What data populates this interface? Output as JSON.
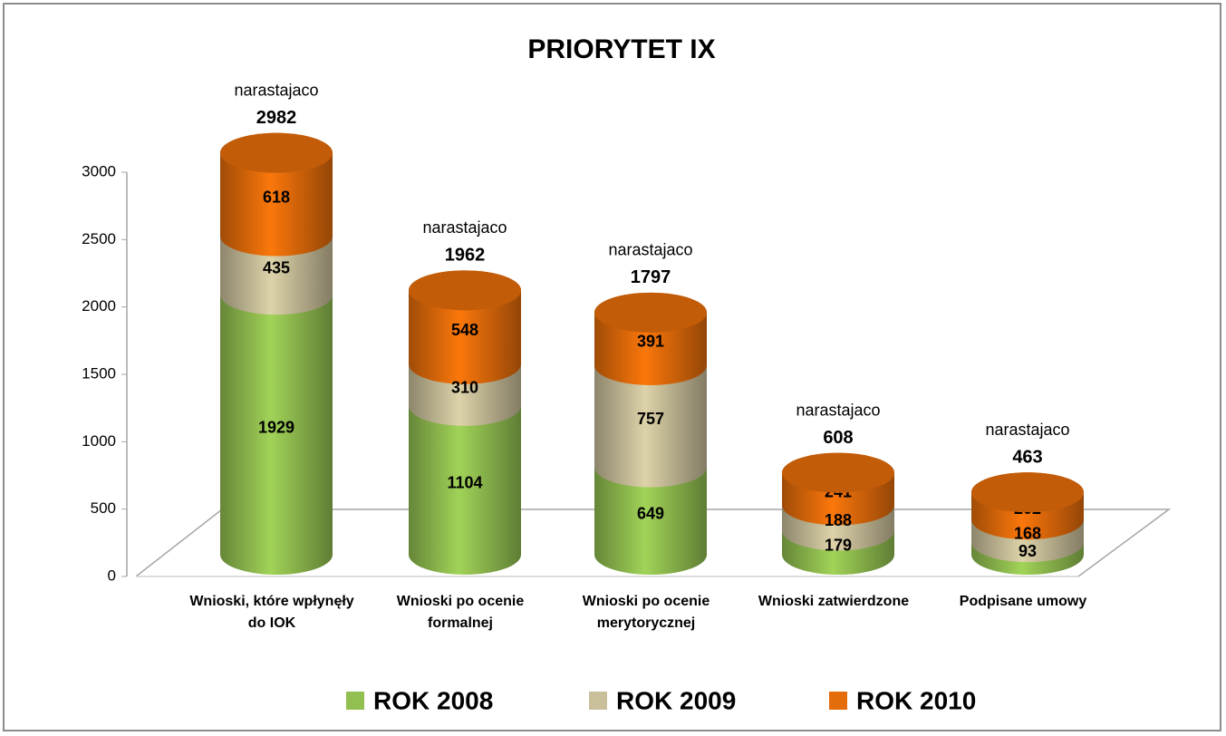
{
  "chart_data": {
    "type": "bar3d-stacked",
    "title": "PRIORYTET IX",
    "categories": [
      "Wnioski, które wpłynęły do IOK",
      "Wnioski po ocenie formalnej",
      "Wnioski po ocenie merytorycznej",
      "Wnioski zatwierdzone",
      "Podpisane umowy"
    ],
    "series": [
      {
        "name": "ROK 2008",
        "color": "#92c050",
        "values": [
          1929,
          1104,
          649,
          179,
          93
        ]
      },
      {
        "name": "ROK 2009",
        "color": "#c9bf9a",
        "values": [
          435,
          310,
          757,
          188,
          168
        ]
      },
      {
        "name": "ROK 2010",
        "color": "#e46c0a",
        "values": [
          618,
          548,
          391,
          241,
          202
        ]
      }
    ],
    "total_label": "narastajaco",
    "totals": [
      2982,
      1962,
      1797,
      608,
      463
    ],
    "ylim": [
      0,
      3000
    ],
    "yticks": [
      0,
      500,
      1000,
      1500,
      2000,
      2500,
      3000
    ],
    "legend": "bottom"
  }
}
